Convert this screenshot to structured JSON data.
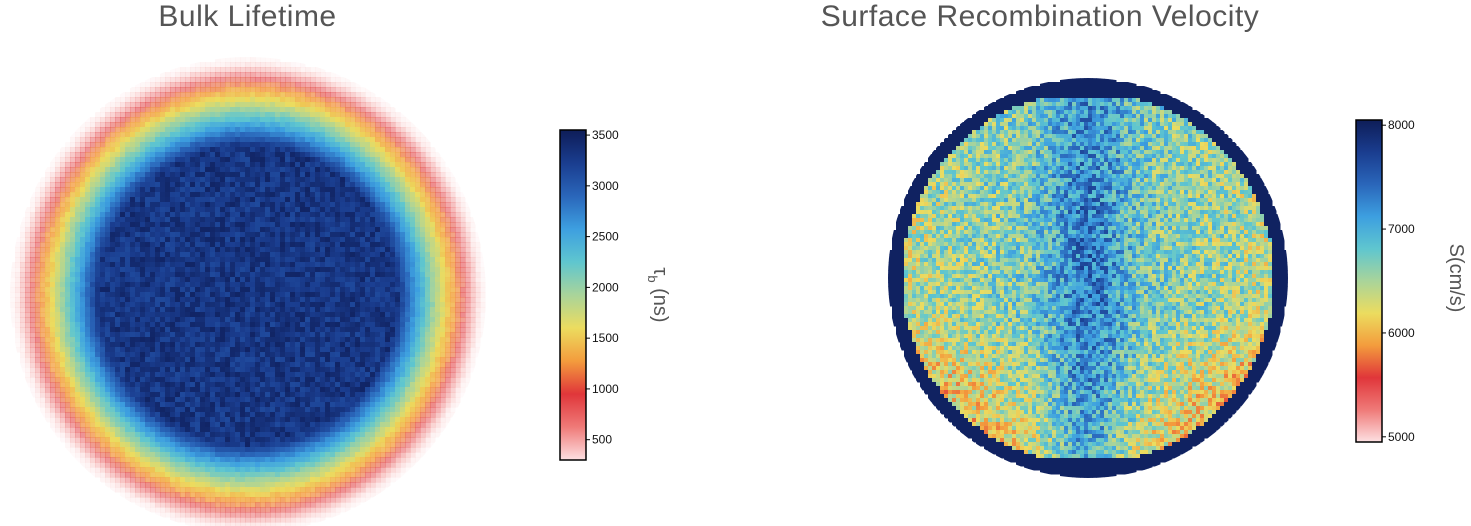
{
  "chart_data": [
    {
      "type": "heatmap",
      "title": "Bulk Lifetime",
      "colorbar": {
        "label": "τb (ns)",
        "label_main": "τ",
        "label_sub": "b",
        "label_unit": "(ns)",
        "range": [
          300,
          3550
        ],
        "ticks": [
          500,
          1000,
          1500,
          2000,
          2500,
          3000,
          3500
        ],
        "tick_labels": [
          "500",
          "1000",
          "1500",
          "2000",
          "2500",
          "3000",
          "3500"
        ]
      },
      "colormap": [
        "#fde0e2",
        "#ef7a78",
        "#e0363a",
        "#f39c3d",
        "#ecdc5f",
        "#a9d49a",
        "#5fc6cf",
        "#3d9fe0",
        "#2a66ba",
        "#1a3d8f",
        "#0e1d58"
      ],
      "map_shape": "circular wafer",
      "center_value": 3300,
      "edge_value": 300
    },
    {
      "type": "heatmap",
      "title": "Surface Recombination Velocity",
      "colorbar": {
        "label": "S(cm/s)",
        "range": [
          4950,
          8050
        ],
        "ticks": [
          5000,
          6000,
          7000,
          8000
        ],
        "tick_labels": [
          "5000",
          "6000",
          "7000",
          "8000"
        ]
      },
      "colormap": [
        "#fde0e2",
        "#ef7a78",
        "#e0363a",
        "#f39c3d",
        "#ecdc5f",
        "#a9d49a",
        "#5fc6cf",
        "#3d9fe0",
        "#2a66ba",
        "#1a3d8f",
        "#0e1d58"
      ],
      "map_shape": "circular wafer",
      "center_value": 7200,
      "edge_value": 8000
    }
  ]
}
